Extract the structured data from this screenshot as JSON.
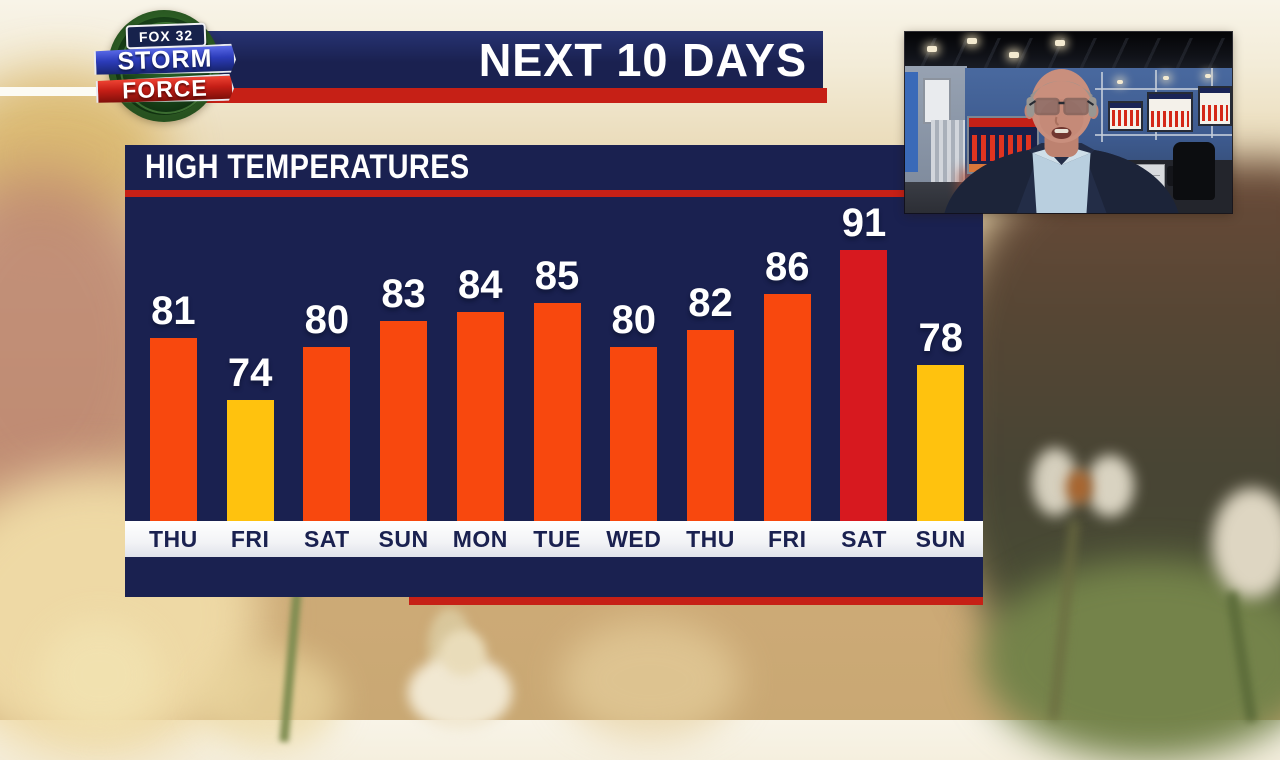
{
  "colors": {
    "navy": "#1A2150",
    "red": "#C62016",
    "orange": "#F8480E",
    "gold": "#FFC20E",
    "hot_red": "#D7191F"
  },
  "logo": {
    "network": "FOX 32",
    "line1": "STORM",
    "line2": "FORCE"
  },
  "banner": {
    "title": "NEXT 10 DAYS"
  },
  "chart_data": {
    "type": "bar",
    "title": "HIGH TEMPERATURES",
    "categories": [
      "THU",
      "FRI",
      "SAT",
      "SUN",
      "MON",
      "TUE",
      "WED",
      "THU",
      "FRI",
      "SAT",
      "SUN"
    ],
    "values": [
      81,
      74,
      80,
      83,
      84,
      85,
      80,
      82,
      86,
      91,
      78
    ],
    "bar_colors": [
      "orange",
      "gold",
      "orange",
      "orange",
      "orange",
      "orange",
      "orange",
      "orange",
      "orange",
      "hot_red",
      "gold"
    ],
    "value_labels_shown": true,
    "xlabel": "",
    "ylabel": "",
    "ylim": [
      60,
      95
    ],
    "grid": false,
    "legend": false
  }
}
